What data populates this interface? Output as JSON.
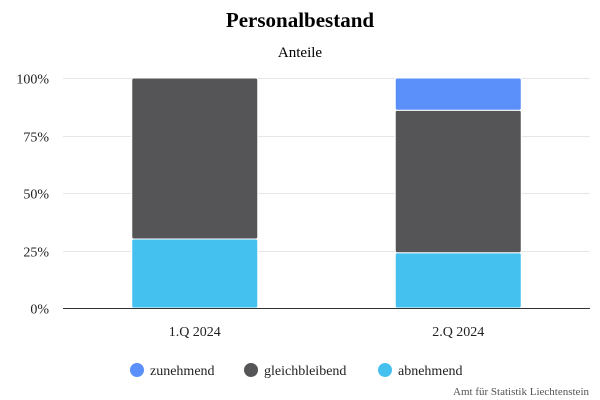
{
  "chart_data": {
    "type": "bar",
    "stacked": true,
    "title": "Personalbestand",
    "subtitle": "Anteile",
    "xlabel": "",
    "ylabel": "",
    "ylim": [
      0,
      100
    ],
    "y_ticks": [
      "0%",
      "25%",
      "50%",
      "75%",
      "100%"
    ],
    "y_tick_values": [
      0,
      25,
      50,
      75,
      100
    ],
    "grid": true,
    "legend_position": "bottom",
    "categories": [
      "1.Q 2024",
      "2.Q 2024"
    ],
    "series": [
      {
        "name": "abnehmend",
        "color": "#44c1ef",
        "values": [
          30,
          24
        ]
      },
      {
        "name": "gleichbleibend",
        "color": "#555557",
        "values": [
          70,
          62
        ]
      },
      {
        "name": "zunehmend",
        "color": "#5b8ff9",
        "values": [
          0,
          14
        ]
      }
    ],
    "legend_order": [
      "zunehmend",
      "gleichbleibend",
      "abnehmend"
    ],
    "credits": "Amt für Statistik Liechtenstein"
  }
}
